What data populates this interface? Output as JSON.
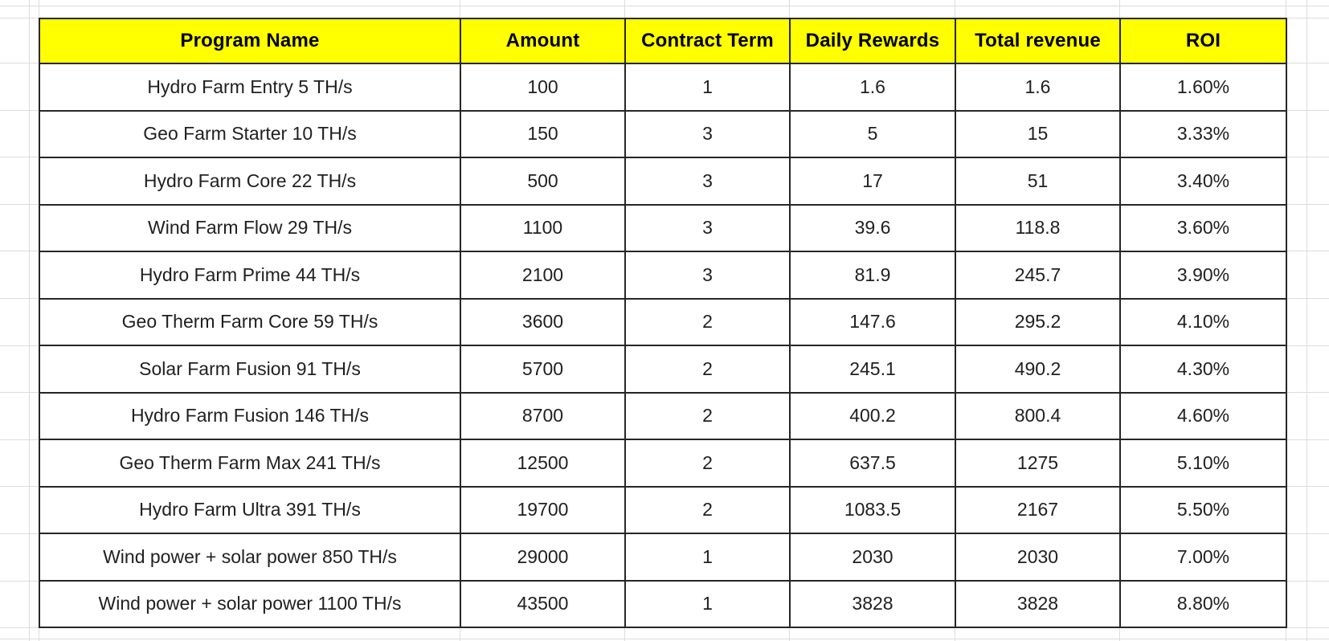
{
  "chart_data": {
    "type": "table",
    "columns": [
      "Program Name",
      "Amount",
      "Contract Term",
      "Daily Rewards",
      "Total revenue",
      "ROI"
    ],
    "rows": [
      [
        "Hydro Farm Entry 5 TH/s",
        "100",
        "1",
        "1.6",
        "1.6",
        "1.60%"
      ],
      [
        "Geo Farm Starter 10 TH/s",
        "150",
        "3",
        "5",
        "15",
        "3.33%"
      ],
      [
        "Hydro Farm Core 22 TH/s",
        "500",
        "3",
        "17",
        "51",
        "3.40%"
      ],
      [
        "Wind Farm Flow 29 TH/s",
        "1100",
        "3",
        "39.6",
        "118.8",
        "3.60%"
      ],
      [
        "Hydro Farm Prime 44 TH/s",
        "2100",
        "3",
        "81.9",
        "245.7",
        "3.90%"
      ],
      [
        "Geo Therm Farm Core 59 TH/s",
        "3600",
        "2",
        "147.6",
        "295.2",
        "4.10%"
      ],
      [
        "Solar Farm Fusion 91 TH/s",
        "5700",
        "2",
        "245.1",
        "490.2",
        "4.30%"
      ],
      [
        "Hydro Farm Fusion 146 TH/s",
        "8700",
        "2",
        "400.2",
        "800.4",
        "4.60%"
      ],
      [
        "Geo Therm Farm Max 241 TH/s",
        "12500",
        "2",
        "637.5",
        "1275",
        "5.10%"
      ],
      [
        "Hydro Farm Ultra 391 TH/s",
        "19700",
        "2",
        "1083.5",
        "2167",
        "5.50%"
      ],
      [
        "Wind power + solar power 850 TH/s",
        "29000",
        "1",
        "2030",
        "2030",
        "7.00%"
      ],
      [
        "Wind power + solar power 1100 TH/s",
        "43500",
        "1",
        "3828",
        "3828",
        "8.80%"
      ]
    ],
    "layout_hints": {
      "header_background": "#ffff00",
      "grid": "on",
      "cell_alignment": "center"
    }
  },
  "colors": {
    "header_bg": "#ffff00",
    "header_text": "#000000",
    "cell_text": "#1f1f1f",
    "table_border": "#262626",
    "sheet_gridline": "#dcdcdc",
    "background": "#ffffff"
  }
}
